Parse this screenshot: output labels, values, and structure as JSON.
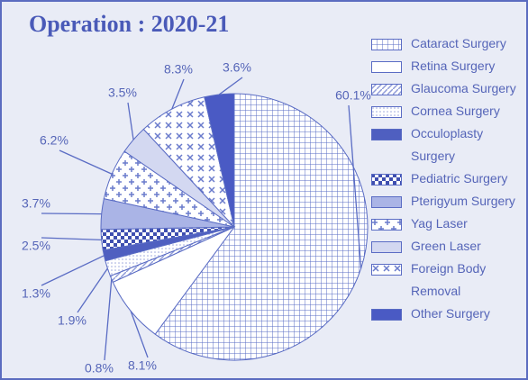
{
  "chart_data": {
    "type": "pie",
    "title": "Operation : 2020-21",
    "series": [
      {
        "name": "Cataract Surgery",
        "color": "#5a6cc4",
        "pattern": "grid",
        "values": [
          60.1
        ],
        "value_labels": [
          "60.1%"
        ]
      },
      {
        "name": "Retina Surgery",
        "color": "#ffffff",
        "pattern": "none",
        "values": [
          8.1
        ],
        "value_labels": [
          "8.1%"
        ]
      },
      {
        "name": "Glaucoma Surgery",
        "color": "#8f9bd8",
        "pattern": "diagonal",
        "values": [
          0.8
        ],
        "value_labels": [
          "0.8%"
        ]
      },
      {
        "name": "Cornea Surgery",
        "color": "#b9c1e8",
        "pattern": "dots",
        "values": [
          1.9
        ],
        "value_labels": [
          "1.9%"
        ]
      },
      {
        "name": "Occuloplasty Surgery",
        "color": "#4f5fc0",
        "pattern": "solid",
        "values": [
          1.3
        ],
        "value_labels": [
          "1.3%"
        ]
      },
      {
        "name": "Pediatric Surgery",
        "color": "#3f4fb0",
        "pattern": "check",
        "values": [
          2.5
        ],
        "value_labels": [
          "2.5%"
        ]
      },
      {
        "name": "Pterigyum Surgery",
        "color": "#aab4e6",
        "pattern": "solid",
        "values": [
          3.7
        ],
        "value_labels": [
          "3.7%"
        ]
      },
      {
        "name": "Yag Laser",
        "color": "#6a7bcc",
        "pattern": "star",
        "values": [
          6.2
        ],
        "value_labels": [
          "6.2%"
        ]
      },
      {
        "name": "Green Laser",
        "color": "#d3d8f1",
        "pattern": "solid",
        "values": [
          3.5
        ],
        "value_labels": [
          "3.5%"
        ]
      },
      {
        "name": "Foreign Body Removal",
        "color": "#6a7bcc",
        "pattern": "cross",
        "values": [
          8.3
        ],
        "value_labels": [
          "8.3%"
        ]
      },
      {
        "name": "Other Surgery",
        "color": "#4a5ac4",
        "pattern": "solid",
        "values": [
          3.6
        ],
        "value_labels": [
          "3.6%"
        ]
      }
    ]
  }
}
